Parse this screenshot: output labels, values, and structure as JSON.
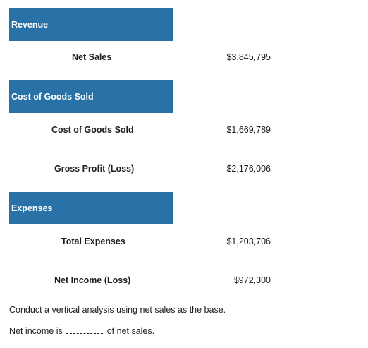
{
  "sections": {
    "revenue": {
      "header": "Revenue"
    },
    "cogs": {
      "header": "Cost of Goods Sold"
    },
    "expenses": {
      "header": "Expenses"
    }
  },
  "rows": {
    "net_sales": {
      "label": "Net Sales",
      "value": "$3,845,795"
    },
    "cost_of_goods_sold": {
      "label": "Cost of Goods Sold",
      "value": "$1,669,789"
    },
    "gross_profit": {
      "label": "Gross Profit (Loss)",
      "value": "$2,176,006"
    },
    "total_expenses": {
      "label": "Total Expenses",
      "value": "$1,203,706"
    },
    "net_income": {
      "label": "Net Income (Loss)",
      "value": "$972,300"
    }
  },
  "question": {
    "instruction": "Conduct a vertical analysis using net sales as the base.",
    "prompt_before": "Net income is",
    "prompt_after": "of net sales."
  }
}
